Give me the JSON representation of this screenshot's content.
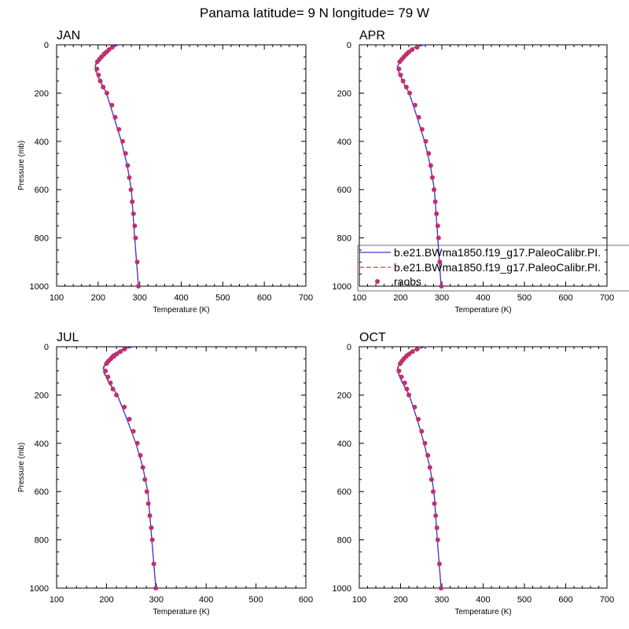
{
  "title": "Panama  latitude= 9 N longitude= 79 W",
  "colors": {
    "model1": "#3b3bd6",
    "model2": "#e8333a",
    "obs": "#c0306a",
    "axis": "#000000"
  },
  "legend": {
    "placement": "lower-right of APR panel",
    "entries": [
      {
        "label": "b.e21.BWma1850.f19_g17.PaleoCalibr.PI.",
        "style": "solid-line",
        "color": "#3b3bd6"
      },
      {
        "label": "b.e21.BWma1850.f19_g17.PaleoCalibr.PI.",
        "style": "dashed-line",
        "color": "#e8333a"
      },
      {
        "label": "raobs",
        "style": "marker",
        "color": "#c0306a"
      }
    ]
  },
  "chart_data": [
    {
      "type": "line",
      "panel": "JAN",
      "xlabel": "Temperature (K)",
      "ylabel": "Pressure (mb)",
      "xlim": [
        100,
        700
      ],
      "ylim": [
        1000,
        0
      ],
      "y_reversed": true,
      "xticks": [
        "100",
        "200",
        "300",
        "400",
        "500",
        "600",
        "700"
      ],
      "yticks": [
        "0",
        "200",
        "400",
        "600",
        "800",
        "1000"
      ],
      "series": [
        {
          "name": "b.e21.BWma1850.f19_g17.PaleoCalibr.PI.",
          "style": "solid",
          "x": [
            250,
            233,
            214,
            200,
            193,
            195,
            205,
            220,
            238,
            256,
            270,
            280,
            288,
            297
          ],
          "y": [
            0,
            10,
            30,
            60,
            90,
            110,
            150,
            200,
            300,
            400,
            500,
            600,
            800,
            1000
          ]
        },
        {
          "name": "b.e21.BWma1850.f19_g17.PaleoCalibr.PI.",
          "style": "dashed",
          "x": [
            249,
            232,
            213,
            199,
            192,
            194,
            204,
            220,
            238,
            256,
            270,
            280,
            288,
            297
          ],
          "y": [
            0,
            10,
            30,
            60,
            90,
            110,
            150,
            200,
            300,
            400,
            500,
            600,
            800,
            1000
          ]
        },
        {
          "name": "raobs",
          "style": "marker",
          "x": [
            234,
            226,
            220,
            214,
            208,
            203,
            198,
            197,
            201,
            205,
            212,
            221,
            233,
            241,
            250,
            259,
            266,
            271,
            275,
            279,
            282,
            285,
            288,
            290,
            294,
            297
          ],
          "y": [
            10,
            20,
            30,
            40,
            50,
            60,
            70,
            100,
            125,
            150,
            175,
            200,
            250,
            300,
            350,
            400,
            450,
            500,
            550,
            600,
            650,
            700,
            750,
            800,
            900,
            1000
          ]
        }
      ]
    },
    {
      "type": "line",
      "panel": "APR",
      "xlabel": "Temperature (K)",
      "ylabel": "",
      "xlim": [
        100,
        700
      ],
      "ylim": [
        1000,
        0
      ],
      "y_reversed": true,
      "xticks": [
        "100",
        "200",
        "300",
        "400",
        "500",
        "600",
        "700"
      ],
      "yticks": [
        "0",
        "200",
        "400",
        "600",
        "800",
        "1000"
      ],
      "series": [
        {
          "name": "b.e21.BWma1850.f19_g17.PaleoCalibr.PI.",
          "style": "solid",
          "x": [
            258,
            235,
            214,
            200,
            193,
            195,
            205,
            221,
            240,
            258,
            272,
            282,
            290,
            298
          ],
          "y": [
            0,
            10,
            30,
            60,
            90,
            110,
            150,
            200,
            300,
            400,
            500,
            600,
            800,
            1000
          ]
        },
        {
          "name": "b.e21.BWma1850.f19_g17.PaleoCalibr.PI.",
          "style": "dashed",
          "x": [
            257,
            234,
            213,
            199,
            192,
            194,
            204,
            221,
            240,
            258,
            272,
            282,
            290,
            298
          ],
          "y": [
            0,
            10,
            30,
            60,
            90,
            110,
            150,
            200,
            300,
            400,
            500,
            600,
            800,
            1000
          ]
        },
        {
          "name": "raobs",
          "style": "marker",
          "x": [
            240,
            228,
            220,
            214,
            208,
            203,
            198,
            196,
            200,
            206,
            214,
            222,
            235,
            244,
            252,
            261,
            268,
            273,
            277,
            281,
            284,
            287,
            290,
            292,
            295,
            299
          ],
          "y": [
            10,
            20,
            30,
            40,
            50,
            60,
            70,
            100,
            125,
            150,
            175,
            200,
            250,
            300,
            350,
            400,
            450,
            500,
            550,
            600,
            650,
            700,
            750,
            800,
            900,
            1000
          ]
        }
      ]
    },
    {
      "type": "line",
      "panel": "JUL",
      "xlabel": "Temperature (K)",
      "ylabel": "Pressure (mb)",
      "xlim": [
        100,
        600
      ],
      "ylim": [
        1000,
        0
      ],
      "y_reversed": true,
      "xticks": [
        "100",
        "200",
        "300",
        "400",
        "500",
        "600"
      ],
      "yticks": [
        "0",
        "200",
        "400",
        "600",
        "800",
        "1000"
      ],
      "series": [
        {
          "name": "b.e21.BWma1850.f19_g17.PaleoCalibr.PI.",
          "style": "solid",
          "x": [
            255,
            233,
            214,
            200,
            194,
            196,
            206,
            222,
            241,
            259,
            273,
            283,
            291,
            299
          ],
          "y": [
            0,
            10,
            30,
            60,
            90,
            110,
            150,
            200,
            300,
            400,
            500,
            600,
            800,
            1000
          ]
        },
        {
          "name": "b.e21.BWma1850.f19_g17.PaleoCalibr.PI.",
          "style": "dashed",
          "x": [
            254,
            232,
            213,
            199,
            193,
            195,
            205,
            222,
            241,
            259,
            273,
            283,
            291,
            299
          ],
          "y": [
            0,
            10,
            30,
            60,
            90,
            110,
            150,
            200,
            300,
            400,
            500,
            600,
            800,
            1000
          ]
        },
        {
          "name": "raobs",
          "style": "marker",
          "x": [
            236,
            228,
            221,
            215,
            209,
            204,
            200,
            198,
            203,
            208,
            213,
            220,
            236,
            246,
            254,
            262,
            268,
            273,
            277,
            281,
            284,
            287,
            290,
            292,
            295,
            299
          ],
          "y": [
            10,
            20,
            30,
            40,
            50,
            60,
            70,
            100,
            125,
            150,
            175,
            200,
            250,
            300,
            350,
            400,
            450,
            500,
            550,
            600,
            650,
            700,
            750,
            800,
            900,
            1000
          ]
        }
      ]
    },
    {
      "type": "line",
      "panel": "OCT",
      "xlabel": "Temperature (K)",
      "ylabel": "",
      "xlim": [
        100,
        700
      ],
      "ylim": [
        1000,
        0
      ],
      "y_reversed": true,
      "xticks": [
        "100",
        "200",
        "300",
        "400",
        "500",
        "600",
        "700"
      ],
      "yticks": [
        "0",
        "200",
        "400",
        "600",
        "800",
        "1000"
      ],
      "series": [
        {
          "name": "b.e21.BWma1850.f19_g17.PaleoCalibr.PI.",
          "style": "solid",
          "x": [
            262,
            236,
            214,
            200,
            193,
            195,
            205,
            221,
            240,
            257,
            271,
            281,
            289,
            298
          ],
          "y": [
            0,
            10,
            30,
            60,
            90,
            110,
            150,
            200,
            300,
            400,
            500,
            600,
            800,
            1000
          ]
        },
        {
          "name": "b.e21.BWma1850.f19_g17.PaleoCalibr.PI.",
          "style": "dashed",
          "x": [
            261,
            235,
            213,
            199,
            192,
            194,
            204,
            221,
            240,
            257,
            271,
            281,
            289,
            298
          ],
          "y": [
            0,
            10,
            30,
            60,
            90,
            110,
            150,
            200,
            300,
            400,
            500,
            600,
            800,
            1000
          ]
        },
        {
          "name": "raobs",
          "style": "marker",
          "x": [
            240,
            229,
            221,
            214,
            208,
            203,
            199,
            196,
            202,
            210,
            215,
            220,
            234,
            243,
            251,
            259,
            266,
            271,
            275,
            279,
            282,
            285,
            288,
            290,
            294,
            298
          ],
          "y": [
            10,
            20,
            30,
            40,
            50,
            60,
            70,
            100,
            125,
            150,
            175,
            200,
            250,
            300,
            350,
            400,
            450,
            500,
            550,
            600,
            650,
            700,
            750,
            800,
            900,
            1000
          ]
        }
      ]
    }
  ]
}
